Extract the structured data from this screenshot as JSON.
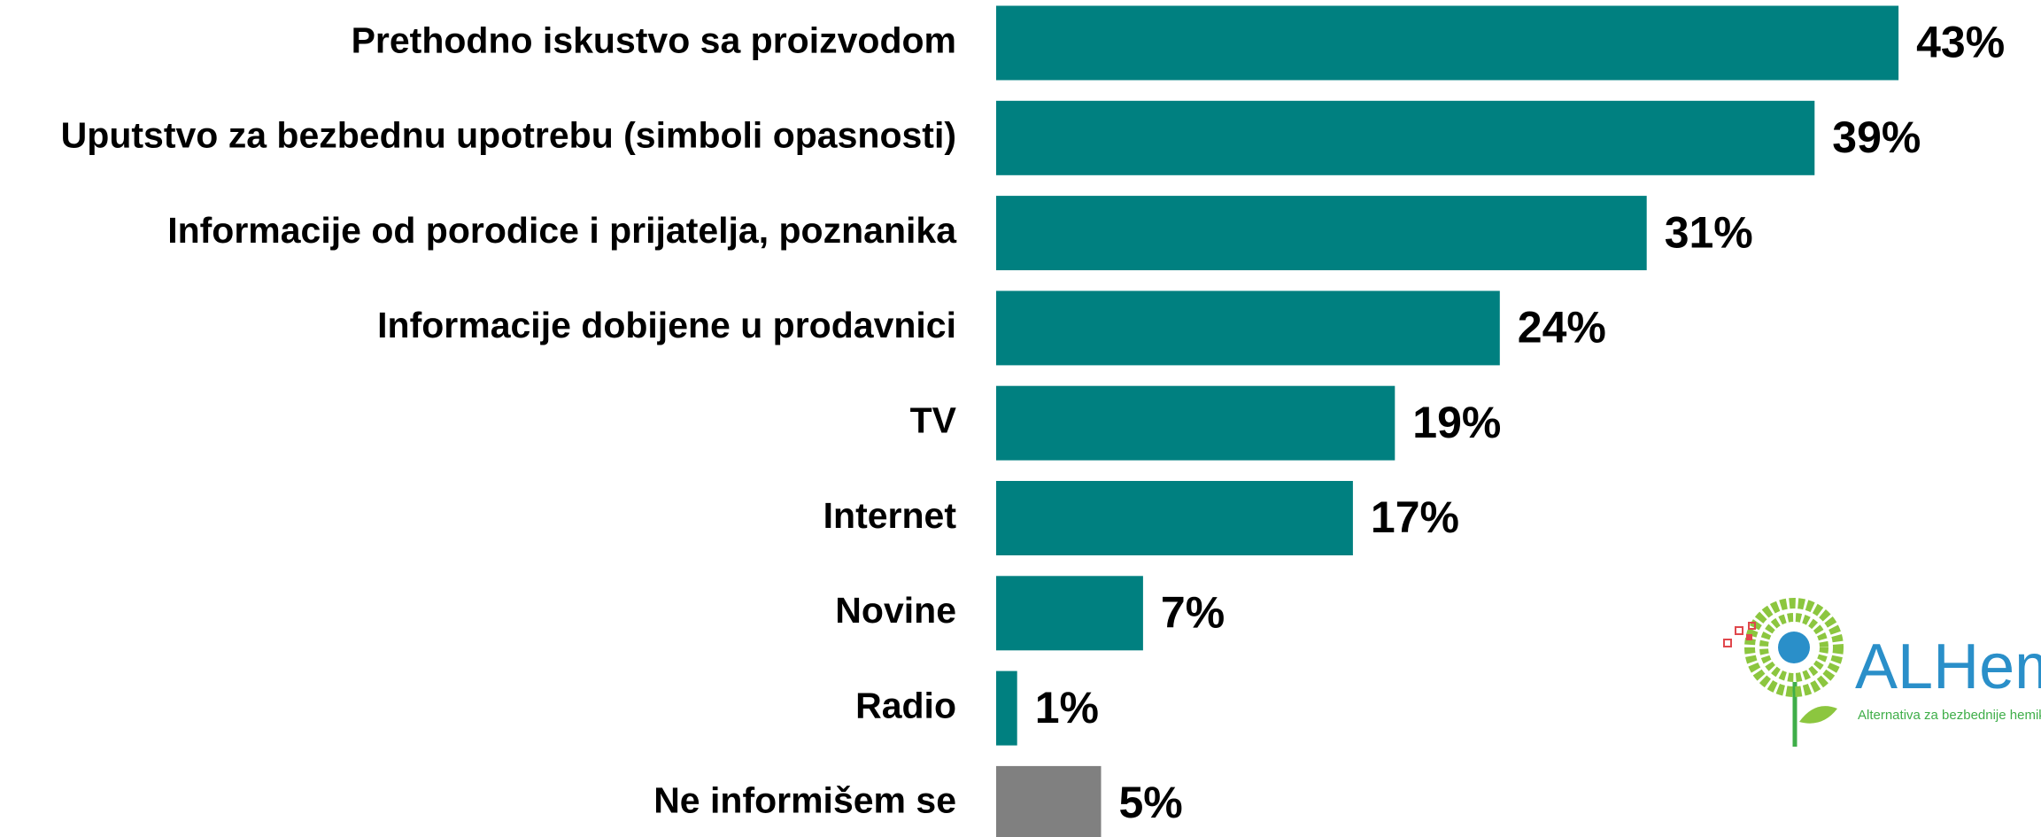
{
  "chart_data": {
    "type": "bar",
    "orientation": "horizontal",
    "categories": [
      "Prethodno iskustvo sa proizvodom",
      "Uputstvo za bezbednu upotrebu (simboli opasnosti)",
      "Informacije od porodice i prijatelja, poznanika",
      "Informacije dobijene u prodavnici",
      "TV",
      "Internet",
      "Novine",
      "Radio",
      "Ne informišem se"
    ],
    "values": [
      43,
      39,
      31,
      24,
      19,
      17,
      7,
      1,
      5
    ],
    "value_labels": [
      "43%",
      "39%",
      "31%",
      "24%",
      "19%",
      "17%",
      "7%",
      "1%",
      "5%"
    ],
    "colors": [
      "#008080",
      "#008080",
      "#008080",
      "#008080",
      "#008080",
      "#008080",
      "#008080",
      "#008080",
      "#808080"
    ]
  },
  "logo": {
    "name": "ALHem",
    "tagline": "Alternativa za bezbednije hemikalije"
  }
}
